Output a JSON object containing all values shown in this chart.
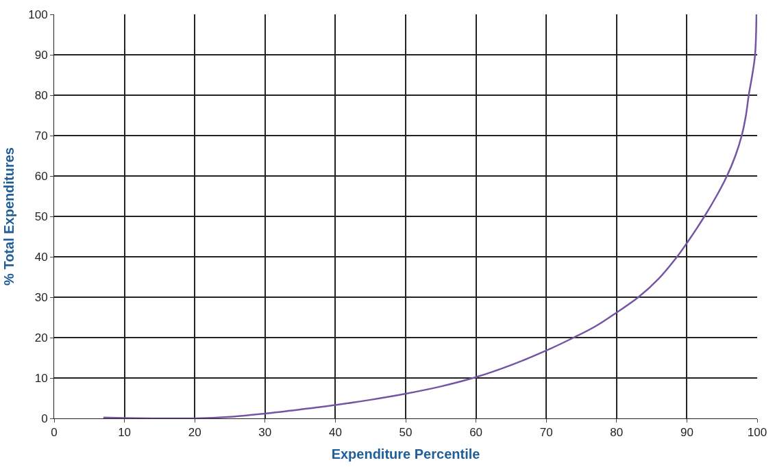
{
  "chart_data": {
    "type": "line",
    "xlabel": "Expenditure Percentile",
    "ylabel": "% Total Expenditures",
    "series": [
      {
        "color": "#7355a3",
        "x": [
          7,
          10,
          14,
          17,
          20,
          25,
          30,
          35,
          40,
          45,
          50,
          55,
          60,
          65,
          70,
          73.9,
          77,
          80,
          83.1,
          86,
          88.6,
          90,
          92.5,
          94.2,
          95.7,
          96.9,
          97.8,
          98.4,
          98.8,
          99.3,
          99.7,
          99.9
        ],
        "values": [
          0.2,
          0.1,
          0,
          0,
          0,
          0.4,
          1.2,
          2.2,
          3.3,
          4.6,
          6.1,
          7.9,
          10.2,
          13.2,
          16.8,
          20,
          22.8,
          26.2,
          30,
          34.6,
          40,
          43.4,
          50,
          55,
          60,
          65,
          70,
          75,
          80,
          85,
          90,
          100
        ]
      }
    ],
    "xlim": [
      0,
      100
    ],
    "ylim": [
      0,
      100
    ],
    "xticks": [
      0,
      10,
      20,
      30,
      40,
      50,
      60,
      70,
      80,
      90,
      100
    ],
    "yticks": [
      0,
      10,
      20,
      30,
      40,
      50,
      60,
      70,
      80,
      90,
      100
    ],
    "grid": true,
    "legend": false
  }
}
